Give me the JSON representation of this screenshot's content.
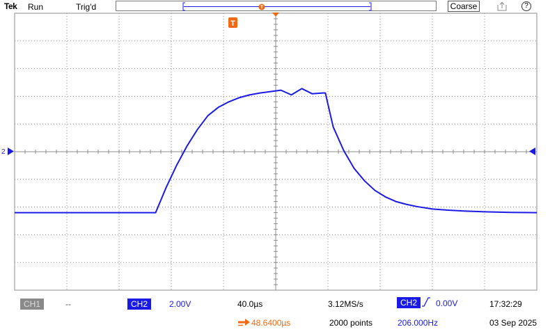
{
  "header": {
    "brand": "Tek",
    "acq_state": "Run",
    "trigger_state": "Trig'd",
    "coarse_button": "Coarse",
    "save_icon": "save-export-icon",
    "help_label": "?",
    "trigger_marker_label": "T"
  },
  "channel_marker": {
    "label": "2"
  },
  "readouts": {
    "ch1_label": "CH1",
    "ch1_scale": "--",
    "ch2_label": "CH2",
    "ch2_scale": "2.00V",
    "timebase": "40.0µs",
    "trigger_position": "48.6400µs",
    "sample_rate": "3.12MS/s",
    "record_length": "2000 points",
    "trigger_source": "CH2",
    "trigger_level": "0.00V",
    "trigger_frequency": "206.000Hz",
    "time": "17:32:29",
    "date": "03 Sep 2025"
  },
  "colors": {
    "trace": "#1a1ae6",
    "trigger_accent": "#f06a14",
    "grid": "#8c8c8c",
    "ch1_inactive": "#8a8a8a"
  },
  "chart_data": {
    "type": "line",
    "title": "",
    "xlabel": "",
    "ylabel": "",
    "x_units": "divisions",
    "y_units": "divisions",
    "xlim": [
      -5,
      5
    ],
    "ylim": [
      -5,
      5
    ],
    "grid": true,
    "series": [
      {
        "x": [
          -5,
          -3.0,
          -2.3,
          -2.1,
          -1.9,
          -1.7,
          -1.5,
          -1.3,
          -1.1,
          -0.9,
          -0.7,
          -0.5,
          -0.3,
          -0.1,
          0.1,
          0.3,
          0.5,
          0.7,
          0.9,
          0.95,
          1.1,
          1.3,
          1.5,
          1.7,
          1.9,
          2.1,
          2.3,
          2.5,
          2.7,
          3.0,
          3.3,
          3.6,
          4.0,
          4.5,
          5.0
        ],
        "y": [
          -2.2,
          -2.2,
          -2.2,
          -1.3,
          -0.5,
          0.2,
          0.8,
          1.3,
          1.6,
          1.8,
          1.95,
          2.05,
          2.12,
          2.17,
          2.22,
          2.05,
          2.28,
          2.09,
          2.12,
          2.12,
          0.9,
          0.05,
          -0.6,
          -1.05,
          -1.4,
          -1.63,
          -1.8,
          -1.9,
          -1.98,
          -2.07,
          -2.11,
          -2.14,
          -2.17,
          -2.19,
          -2.2
        ]
      }
    ]
  }
}
